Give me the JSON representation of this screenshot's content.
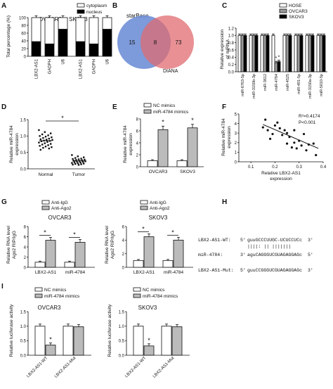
{
  "panels": {
    "A": {
      "label": "A",
      "ylabel": "Total percentage (%)",
      "yticks": [
        "0",
        "20",
        "40",
        "60",
        "80",
        "100"
      ],
      "legend": [
        "cytoplasm",
        "nucleus"
      ],
      "groups": [
        "OVCAR3",
        "SKOV3"
      ],
      "colors": {
        "cytoplasm": "#ffffff",
        "nucleus": "#000000"
      }
    },
    "B": {
      "label": "B",
      "sets": [
        "starBase",
        "DIANA"
      ],
      "counts": [
        "15",
        "8",
        "73"
      ],
      "colors": {
        "left": "#6f8fd6",
        "right": "#e06b70",
        "overlap": "#b35a6a"
      }
    },
    "C": {
      "label": "C",
      "ylabel": "Relative expression\nof miRNA",
      "yticks": [
        "0.0",
        "0.2",
        "0.4",
        "0.6",
        "0.8",
        "1.0",
        "1.2"
      ],
      "legend": [
        "HOSE",
        "OVCAR3",
        "SKOV3"
      ]
    },
    "D": {
      "label": "D",
      "ylabel": "Relative miR-4784\nexpression",
      "yticks": [
        "0.0",
        "0.5",
        "1.0",
        "1.5"
      ],
      "star": "*"
    },
    "E": {
      "label": "E",
      "ylabel": "Relative miR-4784\nexpression",
      "yticks": [
        "0",
        "2",
        "4",
        "6",
        "8"
      ],
      "legend": [
        "NC mimics",
        "miR-4784 mimics"
      ],
      "star": "*"
    },
    "F": {
      "label": "F",
      "ylabel": "Relative miR-4784\nexpression",
      "xlabel": "Relative LBX2-AS1\nexpression",
      "yticks": [
        "0",
        "1",
        "2",
        "3",
        "4",
        "5"
      ],
      "xticks": [
        "0.1",
        "0.2",
        "0.3",
        "0.4"
      ],
      "stats": [
        "R²=0.4174",
        "P<0.001"
      ]
    },
    "G": {
      "label": "G",
      "ylabel": "Relative RNA level\nAgo2 RIP/IgG",
      "yticks": [
        "0",
        "2",
        "4",
        "6",
        "8"
      ],
      "legend": [
        "Anti-IgG",
        "Anti-Ago2"
      ],
      "titles": [
        "OVCAR3",
        "SKOV3"
      ],
      "star": "*"
    },
    "H": {
      "label": "H",
      "rows": [
        {
          "name": "LBX2-AS1-WT:",
          "p5": "5'",
          "seq": "guuGCCCUUGC-UCUCCUCc",
          "p3": "3'"
        },
        {
          "name": "",
          "p5": "",
          "seq": "||||: ||  |||||||",
          "p3": ""
        },
        {
          "name": "miR-4784:",
          "p5": "3'",
          "seq": "aguCAGGGUCGUAGAGGAGc",
          "p3": "5'"
        },
        {
          "name": "LBX2-AS1-Mut:",
          "p5": "5'",
          "seq": "guuCCGGGUCGUAGAGGAGc",
          "p3": "3'"
        }
      ]
    },
    "I": {
      "label": "I",
      "ylabel": "Relative luciferase activity",
      "yticks": [
        "0.0",
        "0.5",
        "1.0",
        "1.5"
      ],
      "legend": [
        "NC mimics",
        "miR-4784 mimics"
      ],
      "titles": [
        "OVCAR3",
        "SKOV3"
      ],
      "star": "*"
    }
  },
  "chart_data": [
    {
      "panel": "A",
      "type": "bar",
      "stacked": true,
      "ylim": [
        0,
        100
      ],
      "facets": [
        "OVCAR3",
        "SKOV3"
      ],
      "categories": [
        "LBX2-AS1",
        "GADPH",
        "U6",
        "LBX2-AS1",
        "GADPH",
        "U6"
      ],
      "series": [
        {
          "name": "nucleus",
          "values": [
            38,
            32,
            70,
            38,
            32,
            70
          ]
        },
        {
          "name": "cytoplasm",
          "values": [
            62,
            68,
            30,
            62,
            68,
            30
          ]
        }
      ]
    },
    {
      "panel": "C",
      "type": "bar",
      "ylim": [
        0,
        1.2
      ],
      "categories": [
        "miR-6763-5p",
        "miR-3150b-3p",
        "miR-3612",
        "miR-4784",
        "miR-4525",
        "miR-491-5p",
        "miR-3150a-3p",
        "miR-5010-5p"
      ],
      "series": [
        {
          "name": "HOSE",
          "values": [
            1,
            1,
            1,
            1,
            1,
            1,
            1,
            1
          ]
        },
        {
          "name": "OVCAR3",
          "values": [
            1,
            1,
            1,
            0.25,
            1,
            1,
            1,
            1
          ]
        },
        {
          "name": "SKOV3",
          "values": [
            1,
            1,
            1,
            0.28,
            1,
            1,
            1,
            1
          ]
        }
      ]
    },
    {
      "panel": "D",
      "type": "scatter",
      "ylim": [
        0,
        1.5
      ],
      "categories": [
        "Normal",
        "Tumor"
      ],
      "series": [
        {
          "name": "Normal",
          "values": [
            1.18,
            1.12,
            1.08,
            1.05,
            1.02,
            1.0,
            0.98,
            0.96,
            0.94,
            0.92,
            0.9,
            0.89,
            0.88,
            0.86,
            0.85,
            0.84,
            0.82,
            0.8,
            0.78,
            0.76,
            0.74,
            0.72,
            0.7,
            0.68,
            0.66,
            0.64,
            0.62,
            0.58
          ]
        },
        {
          "name": "Tumor",
          "values": [
            0.42,
            0.38,
            0.35,
            0.33,
            0.31,
            0.3,
            0.29,
            0.28,
            0.27,
            0.26,
            0.25,
            0.24,
            0.23,
            0.22,
            0.21,
            0.2,
            0.19,
            0.18,
            0.17,
            0.16,
            0.15,
            0.14,
            0.13,
            0.12
          ]
        }
      ]
    },
    {
      "panel": "E",
      "type": "bar",
      "ylim": [
        0,
        8
      ],
      "categories": [
        "OVCAR3",
        "SKOV3"
      ],
      "series": [
        {
          "name": "NC mimics",
          "values": [
            1.0,
            1.0
          ]
        },
        {
          "name": "miR-4784 mimics",
          "values": [
            6.2,
            6.5
          ]
        }
      ]
    },
    {
      "panel": "F",
      "type": "scatter",
      "xlim": [
        0.1,
        0.4
      ],
      "ylim": [
        0,
        5
      ],
      "points": [
        [
          0.15,
          3.6
        ],
        [
          0.16,
          4.4
        ],
        [
          0.17,
          3.3
        ],
        [
          0.18,
          2.4
        ],
        [
          0.19,
          2.9
        ],
        [
          0.2,
          3.8
        ],
        [
          0.21,
          4.1
        ],
        [
          0.22,
          3.5
        ],
        [
          0.23,
          2.8
        ],
        [
          0.24,
          3.3
        ],
        [
          0.25,
          1.9
        ],
        [
          0.25,
          3.0
        ],
        [
          0.26,
          2.6
        ],
        [
          0.27,
          1.5
        ],
        [
          0.28,
          2.0
        ],
        [
          0.28,
          3.3
        ],
        [
          0.29,
          1.4
        ],
        [
          0.3,
          2.2
        ],
        [
          0.31,
          1.7
        ],
        [
          0.32,
          2.9
        ],
        [
          0.33,
          1.2
        ],
        [
          0.34,
          1.8
        ],
        [
          0.36,
          1.9
        ],
        [
          0.37,
          0.7
        ]
      ],
      "fit": [
        [
          0.15,
          3.9
        ],
        [
          0.38,
          1.4
        ]
      ]
    },
    {
      "panel": "G-OVCAR3",
      "type": "bar",
      "ylim": [
        0,
        8
      ],
      "categories": [
        "LBX2-AS1",
        "miR-4784"
      ],
      "series": [
        {
          "name": "Anti-IgG",
          "values": [
            1.0,
            1.0
          ]
        },
        {
          "name": "Anti-Ago2",
          "values": [
            5.3,
            4.9
          ]
        }
      ]
    },
    {
      "panel": "G-SKOV3",
      "type": "bar",
      "ylim": [
        0,
        6
      ],
      "categories": [
        "LBX2-AS1",
        "miR-4784"
      ],
      "series": [
        {
          "name": "Anti-IgG",
          "values": [
            1.0,
            1.0
          ]
        },
        {
          "name": "Anti-Ago2",
          "values": [
            4.5,
            4.0
          ]
        }
      ]
    },
    {
      "panel": "I-OVCAR3",
      "type": "bar",
      "ylim": [
        0,
        1.5
      ],
      "categories": [
        "LBX2-AS1-WT",
        "LBX2-AS1-Mut"
      ],
      "series": [
        {
          "name": "NC mimics",
          "values": [
            1.0,
            1.0
          ]
        },
        {
          "name": "miR-4784 mimics",
          "values": [
            0.35,
            0.98
          ]
        }
      ]
    },
    {
      "panel": "I-SKOV3",
      "type": "bar",
      "ylim": [
        0,
        1.5
      ],
      "categories": [
        "LBX2-AS1-WT",
        "LBX2-AS1-Mut"
      ],
      "series": [
        {
          "name": "NC mimics",
          "values": [
            1.0,
            1.0
          ]
        },
        {
          "name": "miR-4784 mimics",
          "values": [
            0.32,
            0.98
          ]
        }
      ]
    }
  ]
}
